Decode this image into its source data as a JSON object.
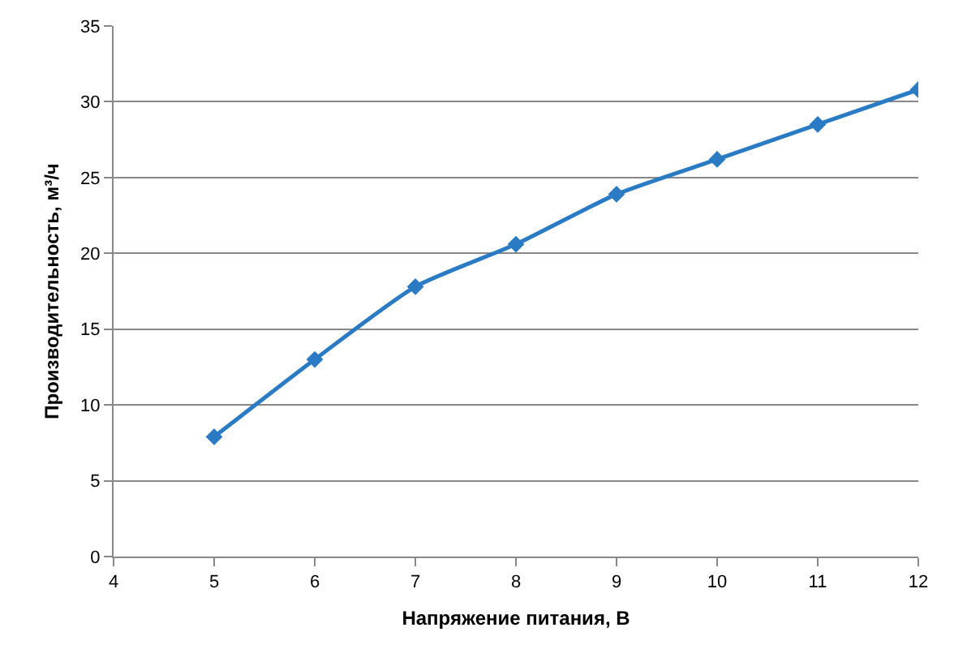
{
  "chart_data": {
    "type": "line",
    "xlabel": "Напряжение питания, В",
    "ylabel": "Производительность, м³/ч",
    "x": [
      5,
      6,
      7,
      8,
      9,
      10,
      11,
      12
    ],
    "series": [
      {
        "color": "#2b7bc4",
        "values": [
          7.9,
          13.0,
          17.8,
          20.6,
          23.9,
          26.2,
          28.5,
          30.8
        ]
      }
    ],
    "xlim": [
      4,
      12
    ],
    "xticks": [
      4,
      5,
      6,
      7,
      8,
      9,
      10,
      11,
      12
    ],
    "ylim": [
      0,
      35
    ],
    "yticks": [
      0,
      5,
      10,
      15,
      20,
      25,
      30,
      35
    ],
    "grid": "y",
    "legend": false,
    "marker": "diamond",
    "line_style": "solid"
  }
}
